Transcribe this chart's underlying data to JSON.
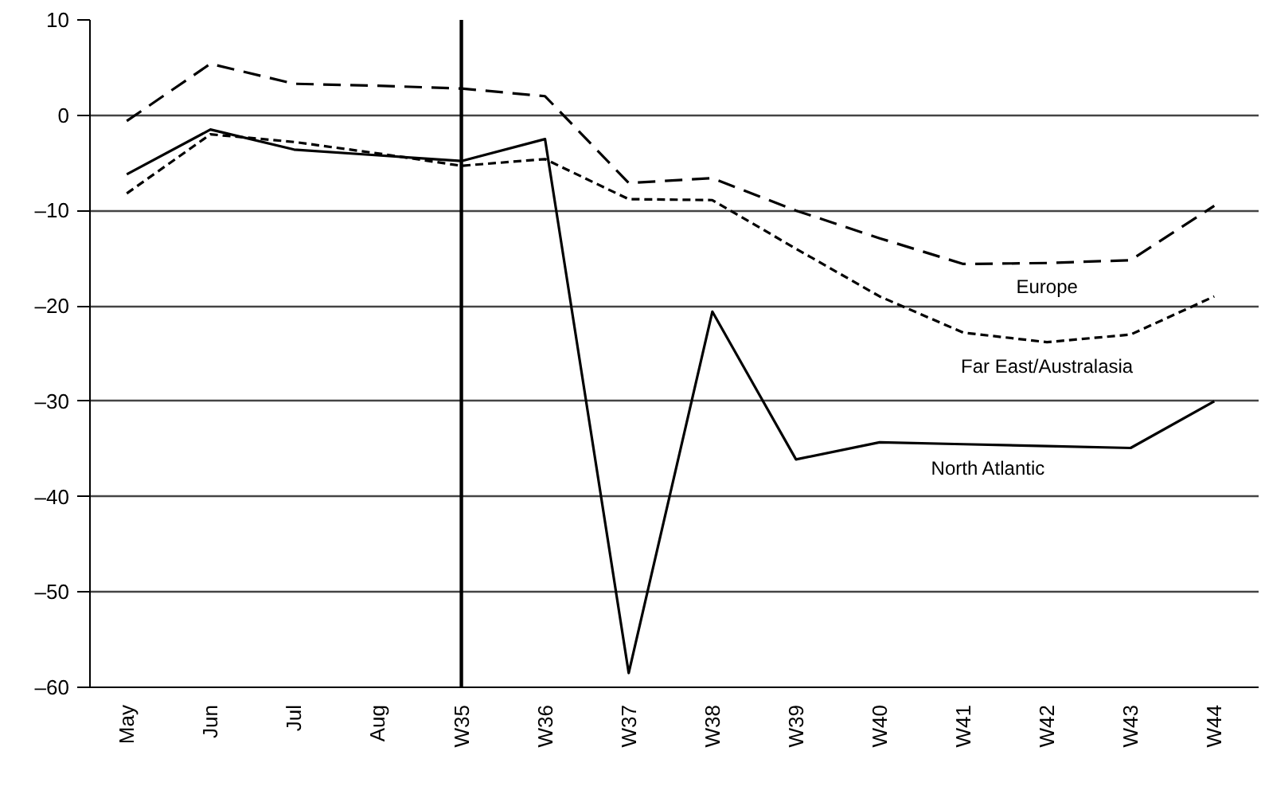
{
  "chart_data": {
    "type": "line",
    "categories": [
      "May",
      "Jun",
      "Jul",
      "Aug",
      "W35",
      "W36",
      "W37",
      "W38",
      "W39",
      "W40",
      "W41",
      "W42",
      "W43",
      "W44"
    ],
    "series": [
      {
        "name": "Europe",
        "color": "#000000",
        "line_style": "dashed",
        "values": [
          -0.6,
          5.4,
          3.3,
          3.1,
          2.8,
          2.0,
          -7.1,
          -6.6,
          -10.0,
          -12.9,
          -15.6,
          -15.5,
          -15.2,
          -9.5
        ]
      },
      {
        "name": "Far East/Australasia",
        "color": "#000000",
        "line_style": "dotted",
        "values": [
          -8.2,
          -2.0,
          -2.8,
          -4.0,
          -5.3,
          -4.6,
          -8.8,
          -8.9,
          -14.0,
          -19.0,
          -22.8,
          -23.8,
          -23.0,
          -19.0
        ]
      },
      {
        "name": "North Atlantic",
        "color": "#000000",
        "line_style": "solid",
        "values": [
          -6.2,
          -1.5,
          -3.6,
          -4.2,
          -4.8,
          -2.5,
          -58.5,
          -20.6,
          -36.1,
          -34.3,
          -34.5,
          -34.7,
          -34.9,
          -30.0
        ]
      }
    ],
    "ylim": [
      -60,
      10
    ],
    "yticks": [
      {
        "value": -60,
        "label": "–60"
      },
      {
        "value": -50,
        "label": "–50"
      },
      {
        "value": -40,
        "label": "–40"
      },
      {
        "value": -30,
        "label": "–30"
      },
      {
        "value": -20,
        "label": "–20"
      },
      {
        "value": -10,
        "label": "–10"
      },
      0,
      10
    ],
    "ref_lines": [
      {
        "axis": "x",
        "value": "W35",
        "color": "#000000"
      }
    ],
    "grid": "y"
  }
}
